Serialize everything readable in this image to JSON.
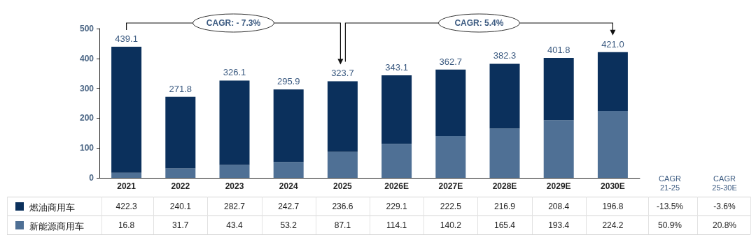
{
  "chart_data": {
    "type": "bar",
    "stacked": true,
    "categories": [
      "2021",
      "2022",
      "2023",
      "2024",
      "2025",
      "2026E",
      "2027E",
      "2028E",
      "2029E",
      "2030E"
    ],
    "series": [
      {
        "name": "新能源商用车",
        "color": "#4f7095",
        "values": [
          16.8,
          31.7,
          43.4,
          53.2,
          87.1,
          114.1,
          140.2,
          165.4,
          193.4,
          224.2
        ]
      },
      {
        "name": "燃油商用车",
        "color": "#0b305c",
        "values": [
          422.3,
          240.1,
          282.7,
          242.7,
          236.6,
          229.1,
          222.5,
          216.9,
          208.4,
          196.8
        ]
      }
    ],
    "totals": [
      "439.1",
      "271.8",
      "326.1",
      "295.9",
      "323.7",
      "343.1",
      "362.7",
      "382.3",
      "401.8",
      "421.0"
    ],
    "ylim": [
      0,
      500
    ],
    "yticks": [
      0,
      100,
      200,
      300,
      400,
      500
    ],
    "grid": false,
    "legend": "bottom left",
    "data_labels": true,
    "annotations": [
      "CAGR: - 7.3%",
      "CAGR: 5.4%",
      "CAGR\n21-25",
      "CAGR\n25-30E",
      "-13.5%",
      "-3.6%",
      "50.9%",
      "20.8%"
    ]
  }
}
